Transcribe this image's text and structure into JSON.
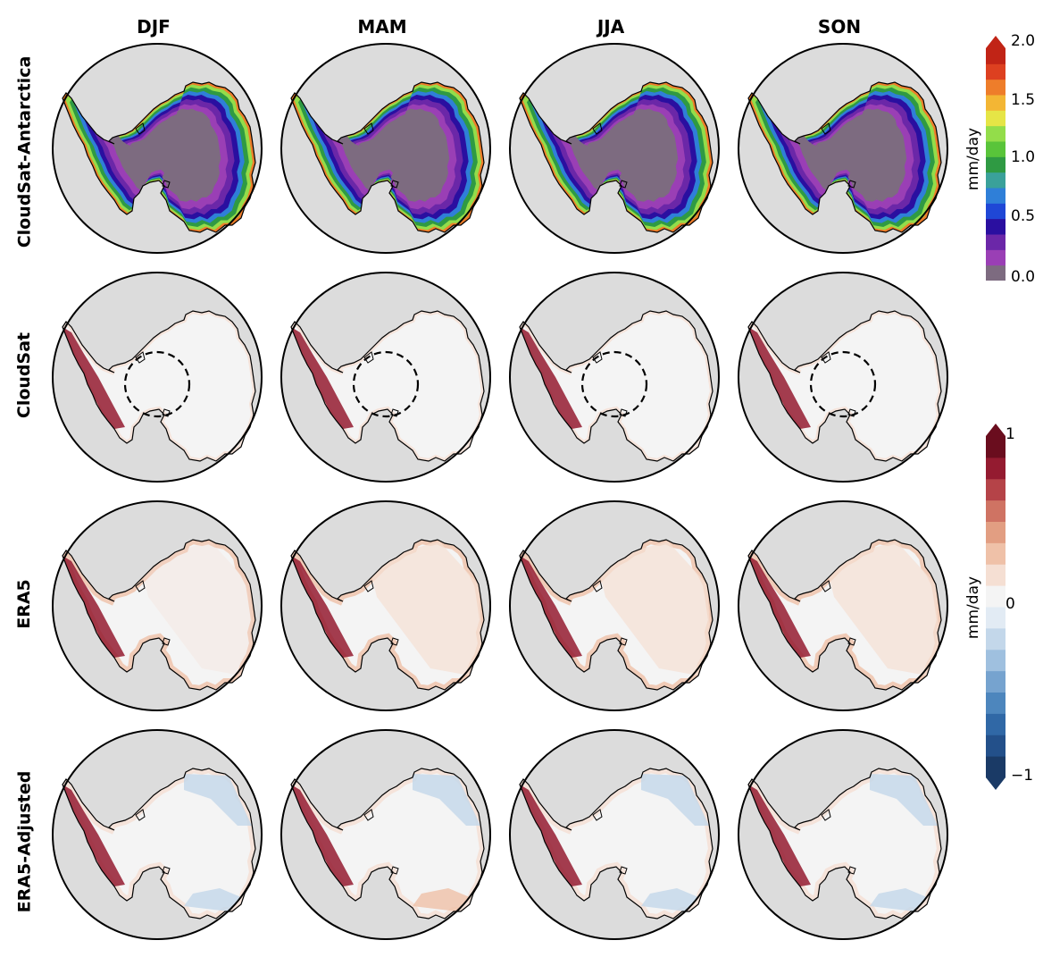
{
  "columns": [
    "DJF",
    "MAM",
    "JJA",
    "SON"
  ],
  "rows": [
    "CloudSat-Antarctica",
    "CloudSat",
    "ERA5",
    "ERA5-Adjusted"
  ],
  "colorbar_top": {
    "unit": "mm/day",
    "ticks": [
      "0.0",
      "0.5",
      "1.0",
      "1.5",
      "2.0"
    ],
    "colors": [
      "#7d6b80",
      "#9a3fb5",
      "#6b27a8",
      "#2a0fa0",
      "#1f47d6",
      "#2f7fd8",
      "#3aa19a",
      "#2f9a43",
      "#59c43a",
      "#93dd4a",
      "#e6e546",
      "#f3b634",
      "#ee7d2a",
      "#dd4020",
      "#c12416"
    ]
  },
  "colorbar_bottom": {
    "unit": "mm/day",
    "ticks": [
      "−1",
      "0",
      "1"
    ],
    "colors": [
      "#1a3a66",
      "#23508a",
      "#3068a6",
      "#4d86bd",
      "#76a3cf",
      "#9fc0df",
      "#c3d7ea",
      "#e2ebf4",
      "#f4f4f4",
      "#f5dfd3",
      "#efc1a8",
      "#e29e82",
      "#cf7363",
      "#b54348",
      "#941b30",
      "#6a0d1e"
    ]
  }
}
